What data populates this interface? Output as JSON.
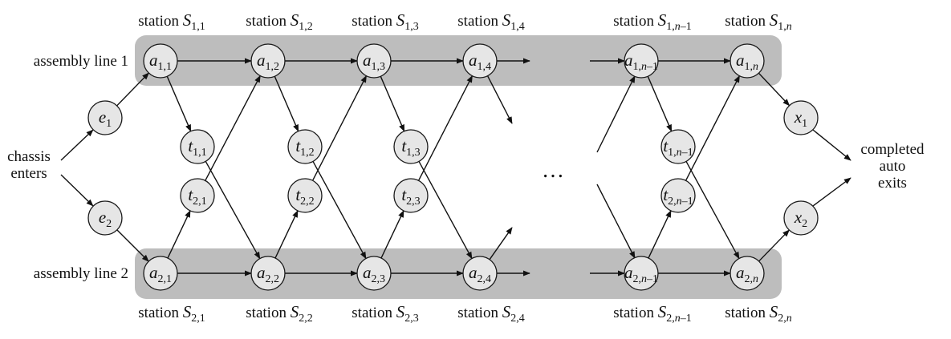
{
  "station_word": "station",
  "top_stations": [
    {
      "letter": "S",
      "sub": "1,1"
    },
    {
      "letter": "S",
      "sub": "1,2"
    },
    {
      "letter": "S",
      "sub": "1,3"
    },
    {
      "letter": "S",
      "sub": "1,4"
    },
    {
      "letter": "S",
      "sub": "1,n–1"
    },
    {
      "letter": "S",
      "sub": "1,n"
    }
  ],
  "bottom_stations": [
    {
      "letter": "S",
      "sub": "2,1"
    },
    {
      "letter": "S",
      "sub": "2,2"
    },
    {
      "letter": "S",
      "sub": "2,3"
    },
    {
      "letter": "S",
      "sub": "2,4"
    },
    {
      "letter": "S",
      "sub": "2,n–1"
    },
    {
      "letter": "S",
      "sub": "2,n"
    }
  ],
  "line_labels": {
    "line1": "assembly line 1",
    "line2": "assembly line 2"
  },
  "entry_label": {
    "line1": "chassis",
    "line2": "enters"
  },
  "exit_label": {
    "line1": "completed",
    "line2": "auto",
    "line3": "exits"
  },
  "ellipsis": "…",
  "nodes": {
    "a1": [
      {
        "sub": "1,1"
      },
      {
        "sub": "1,2"
      },
      {
        "sub": "1,3"
      },
      {
        "sub": "1,4"
      },
      {
        "sub": "1,n–1"
      },
      {
        "sub": "1,n"
      }
    ],
    "a2": [
      {
        "sub": "2,1"
      },
      {
        "sub": "2,2"
      },
      {
        "sub": "2,3"
      },
      {
        "sub": "2,4"
      },
      {
        "sub": "2,n–1"
      },
      {
        "sub": "2,n"
      }
    ],
    "t1": [
      {
        "sub": "1,1"
      },
      {
        "sub": "1,2"
      },
      {
        "sub": "1,3"
      },
      {
        "sub": "1,n–1"
      }
    ],
    "t2": [
      {
        "sub": "2,1"
      },
      {
        "sub": "2,2"
      },
      {
        "sub": "2,3"
      },
      {
        "sub": "2,n–1"
      }
    ],
    "e": [
      {
        "sub": "1"
      },
      {
        "sub": "2"
      }
    ],
    "x": [
      {
        "sub": "1"
      },
      {
        "sub": "2"
      }
    ]
  },
  "symbols": {
    "a": "a",
    "t": "t",
    "e": "e",
    "x": "x"
  }
}
